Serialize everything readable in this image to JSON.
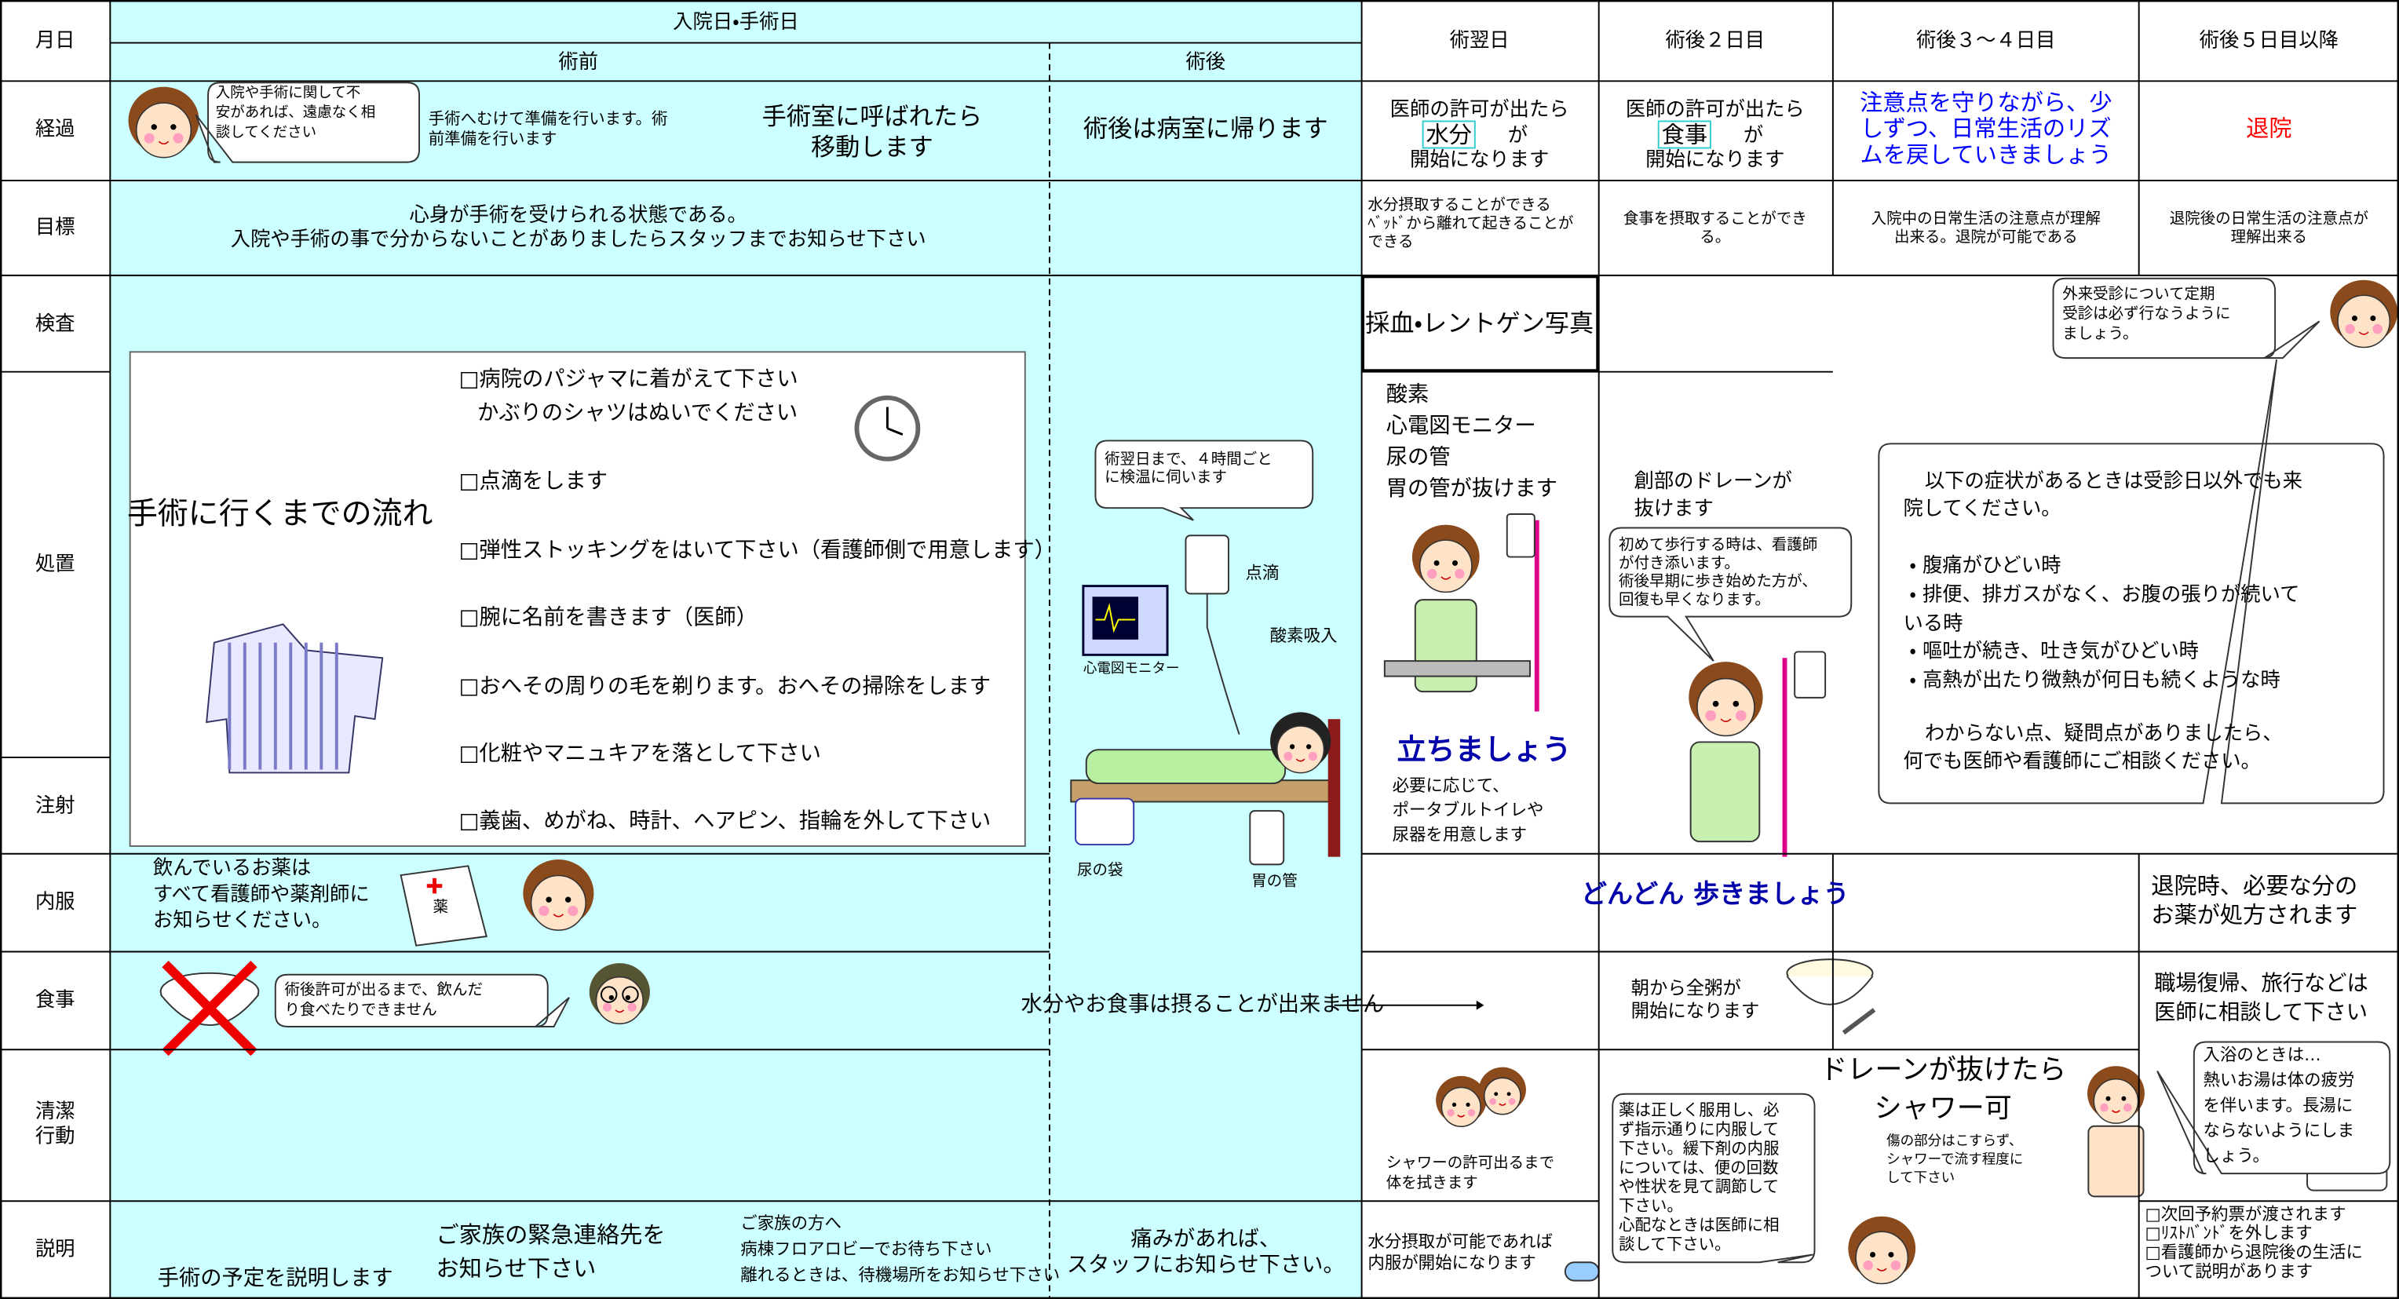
{
  "header": {
    "month_day": "月日",
    "admission_surgery_day": "入院日・手術日",
    "pre_op": "術前",
    "post_op": "術後",
    "day_after": "術翌日",
    "day2": "術後２日目",
    "day3_4": "術後３〜４日目",
    "day5": "術後５日目以降"
  },
  "row_labels": [
    "経過",
    "目標",
    "検査",
    "処置",
    "注射",
    "内服",
    "食事",
    [
      "清潔",
      "行動"
    ],
    "説明"
  ],
  "progress": {
    "pre_bubble": [
      "入院や手術に関して不",
      "安があれば、遠慮なく相",
      "談してください"
    ],
    "pre_prep": [
      "手術へむけて準備を行います。術",
      "前準備を行います"
    ],
    "pre_move": [
      "手術室に呼ばれたら",
      "移動します"
    ],
    "post": "術後は病室に帰ります",
    "day_after": {
      "before": "医師の許可が出たら",
      "highlight": "水分",
      "after": "が",
      "end": "開始になります"
    },
    "day2": {
      "before": "医師の許可が出たら",
      "highlight": "食事",
      "after": "が",
      "end": "開始になります"
    },
    "day3_4": [
      "注意点を守りながら、少",
      "しずつ、日常生活のリズ",
      "ムを戻していきましょう"
    ],
    "day5": "退院"
  },
  "goals": {
    "pre": [
      "心身が手術を受けられる状態である。",
      "入院や手術の事で分からないことがありましたらスタッフまでお知らせ下さい"
    ],
    "day_after": [
      "水分摂取することができる",
      "ﾍﾞｯﾄﾞから離れて起きることが",
      "できる"
    ],
    "day2": [
      "食事を摂取することができ",
      "る。"
    ],
    "day3_4": [
      "入院中の日常生活の注意点が理解",
      "出来る。退院が可能である"
    ],
    "day5": [
      "退院後の日常生活の注意点が",
      "理解出来る"
    ]
  },
  "tests": {
    "day_after": "採血・レントゲン写真",
    "outpatient_bubble": [
      "外来受診について定期",
      "受診は必ず行なうように",
      "ましょう。"
    ]
  },
  "procedures": {
    "flow_title": "手術に行くまでの流れ",
    "flow_items": [
      [
        "□病院のパジャマに着がえて下さい",
        "かぶりのシャツはぬいでください"
      ],
      "□点滴をします",
      "□弾性ストッキングをはいて下さい（看護師側で用意します）",
      "□腕に名前を書きます（医師）",
      "□おへその周りの毛を剃ります。おへその掃除をします",
      "□化粧やマニュキアを落として下さい",
      "□義歯、めがね、時計、ヘアピン、指輪を外して下さい"
    ],
    "post_bubble": [
      "術翌日まで、４時間ごと",
      "に検温に伺います"
    ],
    "post_labels": {
      "drip": "点滴",
      "oxygen": "酸素吸入",
      "monitor": "心電図モニター",
      "urine_bag": "尿の袋",
      "stomach_tube": "胃の管"
    },
    "day_after_list": [
      "酸素",
      "心電図モニター",
      "尿の管",
      "胃の管が抜けます"
    ],
    "day_after_stand": "立ちましょう",
    "day_after_note": [
      "必要に応じて、",
      "ポータブルトイレや",
      "尿器を用意します"
    ],
    "day2_drain": [
      "創部のドレーンが",
      "抜けます"
    ],
    "day2_bubble": [
      "初めて歩行する時は、看護師",
      "が付き添います。",
      "術後早期に歩き始めた方が、",
      "回復も早くなります。"
    ],
    "symptoms_note": [
      "以下の症状があるときは受診日以外でも来",
      "院してください。",
      "・ 腹痛がひどい時",
      "・ 排便、排ガスがなく、お腹の張りが続いて",
      "いる時",
      "・ 嘔吐が続き、吐き気がひどい時",
      "・ 高熱が出たり微熱が何日も続くような時",
      "わからない点、疑問点がありましたら、",
      "何でも医師や看護師にご相談ください。"
    ]
  },
  "medication": {
    "pre_note": [
      "飲んでいるお薬は",
      "すべて看護師や薬剤師に",
      "お知らせください。"
    ],
    "medicine_label": "薬",
    "day2_walk": "どんどん 歩きましょう",
    "day5": [
      "退院時、必要な分の",
      "お薬が処方されます"
    ]
  },
  "meals": {
    "pre_bubble": [
      "術後許可が出るまで、飲んだ",
      "り食べたりできません"
    ],
    "post": "水分やお食事は摂ることが出来ません",
    "day2": [
      "朝から全粥が",
      "開始になります"
    ],
    "day5": [
      "職場復帰、旅行などは",
      "医師に相談して下さい"
    ]
  },
  "hygiene": {
    "day_after": [
      "シャワーの許可出るまで",
      "体を拭きます"
    ],
    "drain_title": "ドレーンが抜けたら",
    "shower_ok": "シャワー可",
    "shower_note": [
      "傷の部分はこすらず、",
      "シャワーで流す程度に",
      "して下さい"
    ],
    "medicine_bubble": [
      "薬は正しく服用し、必",
      "ず指示通りに内服して",
      "下さい。緩下剤の内服",
      "については、便の回数",
      "や性状を見て調節して",
      "下さい。",
      "心配なときは医師に相",
      "談して下さい。"
    ],
    "bath_bubble": [
      "入浴のときは…",
      "熱いお湯は体の疲労",
      "を伴います。長湯に",
      "ならないようにしま",
      "しょう。"
    ]
  },
  "explanation": {
    "pre_schedule": "手術の予定を説明します",
    "pre_contact": [
      "ご家族の緊急連絡先を",
      "お知らせ下さい"
    ],
    "pre_family": [
      "ご家族の方へ",
      "病棟フロアロビーでお待ち下さい",
      "離れるときは、待機場所をお知らせ下さい"
    ],
    "post": [
      "痛みがあれば、",
      "スタッフにお知らせ下さい。"
    ],
    "day_after": [
      "水分摂取が可能であれば",
      "内服が開始になります"
    ],
    "day5": [
      "□次回予約票が渡されます",
      "□ﾘｽﾄﾊﾞﾝﾄﾞを外します",
      "□看護師から退院後の生活に",
      "ついて説明があります"
    ]
  }
}
